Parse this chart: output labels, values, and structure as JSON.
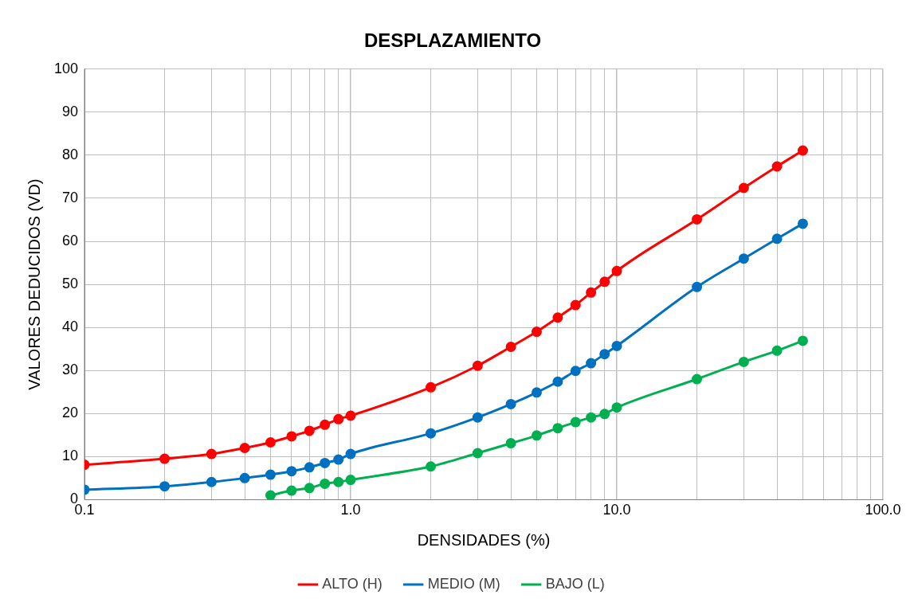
{
  "chart_data": {
    "type": "line",
    "title": "DESPLAZAMIENTO",
    "xlabel": "DENSIDADES (%)",
    "ylabel": "VALORES DEDUCIDOS (VD)",
    "log": "x",
    "grid": true,
    "legend": "bottom",
    "marker": "circle",
    "line_style": "solid",
    "xlim": [
      0.1,
      100
    ],
    "xticks": [
      {
        "value": 0.1,
        "label": "0.1"
      },
      {
        "value": 0.2,
        "label": null
      },
      {
        "value": 0.3,
        "label": null
      },
      {
        "value": 0.4,
        "label": null
      },
      {
        "value": 0.5,
        "label": null
      },
      {
        "value": 0.6,
        "label": null
      },
      {
        "value": 0.7,
        "label": null
      },
      {
        "value": 0.8,
        "label": null
      },
      {
        "value": 0.9,
        "label": null
      },
      {
        "value": 1,
        "label": "1.0"
      },
      {
        "value": 2,
        "label": null
      },
      {
        "value": 3,
        "label": null
      },
      {
        "value": 4,
        "label": null
      },
      {
        "value": 5,
        "label": null
      },
      {
        "value": 6,
        "label": null
      },
      {
        "value": 7,
        "label": null
      },
      {
        "value": 8,
        "label": null
      },
      {
        "value": 9,
        "label": null
      },
      {
        "value": 10,
        "label": "10.0"
      },
      {
        "value": 20,
        "label": null
      },
      {
        "value": 30,
        "label": null
      },
      {
        "value": 40,
        "label": null
      },
      {
        "value": 50,
        "label": null
      },
      {
        "value": 60,
        "label": null
      },
      {
        "value": 70,
        "label": null
      },
      {
        "value": 80,
        "label": null
      },
      {
        "value": 90,
        "label": null
      },
      {
        "value": 100,
        "label": "100.0"
      }
    ],
    "ylim": [
      0,
      100
    ],
    "yticks": [
      0,
      10,
      20,
      30,
      40,
      50,
      60,
      70,
      80,
      90,
      100
    ],
    "series": [
      {
        "name": "ALTO (H)",
        "color": "#ff0000",
        "x": [
          0.1,
          0.2,
          0.3,
          0.4,
          0.5,
          0.6,
          0.7,
          0.8,
          0.9,
          1,
          2,
          3,
          4,
          5,
          6,
          7,
          8,
          9,
          10,
          20,
          30,
          40,
          50
        ],
        "values": [
          8.1,
          9.5,
          10.6,
          12.0,
          13.3,
          14.7,
          16.0,
          17.4,
          18.7,
          19.5,
          26.1,
          31.1,
          35.5,
          39.0,
          42.3,
          45.2,
          48.1,
          50.6,
          53.1,
          65.1,
          72.4,
          77.4,
          81.1
        ]
      },
      {
        "name": "MEDIO (M)",
        "color": "#0070c0",
        "x": [
          0.1,
          0.2,
          0.3,
          0.4,
          0.5,
          0.6,
          0.7,
          0.8,
          0.9,
          1,
          2,
          3,
          4,
          5,
          6,
          7,
          8,
          9,
          10,
          20,
          30,
          40,
          50
        ],
        "values": [
          2.3,
          3.1,
          4.1,
          5.0,
          5.8,
          6.6,
          7.5,
          8.5,
          9.3,
          10.6,
          15.4,
          19.1,
          22.2,
          24.9,
          27.4,
          29.9,
          31.7,
          33.8,
          35.7,
          49.4,
          56.0,
          60.6,
          64.1
        ]
      },
      {
        "name": "BAJO (L)",
        "color": "#00b050",
        "x": [
          0.5,
          0.6,
          0.7,
          0.8,
          0.9,
          1,
          2,
          3,
          4,
          5,
          6,
          7,
          8,
          9,
          10,
          20,
          30,
          40,
          50
        ],
        "values": [
          1.0,
          2.1,
          2.7,
          3.7,
          4.1,
          4.6,
          7.7,
          10.8,
          13.1,
          14.9,
          16.6,
          18.0,
          19.1,
          19.9,
          21.4,
          28.0,
          32.0,
          34.6,
          36.9
        ]
      }
    ]
  }
}
